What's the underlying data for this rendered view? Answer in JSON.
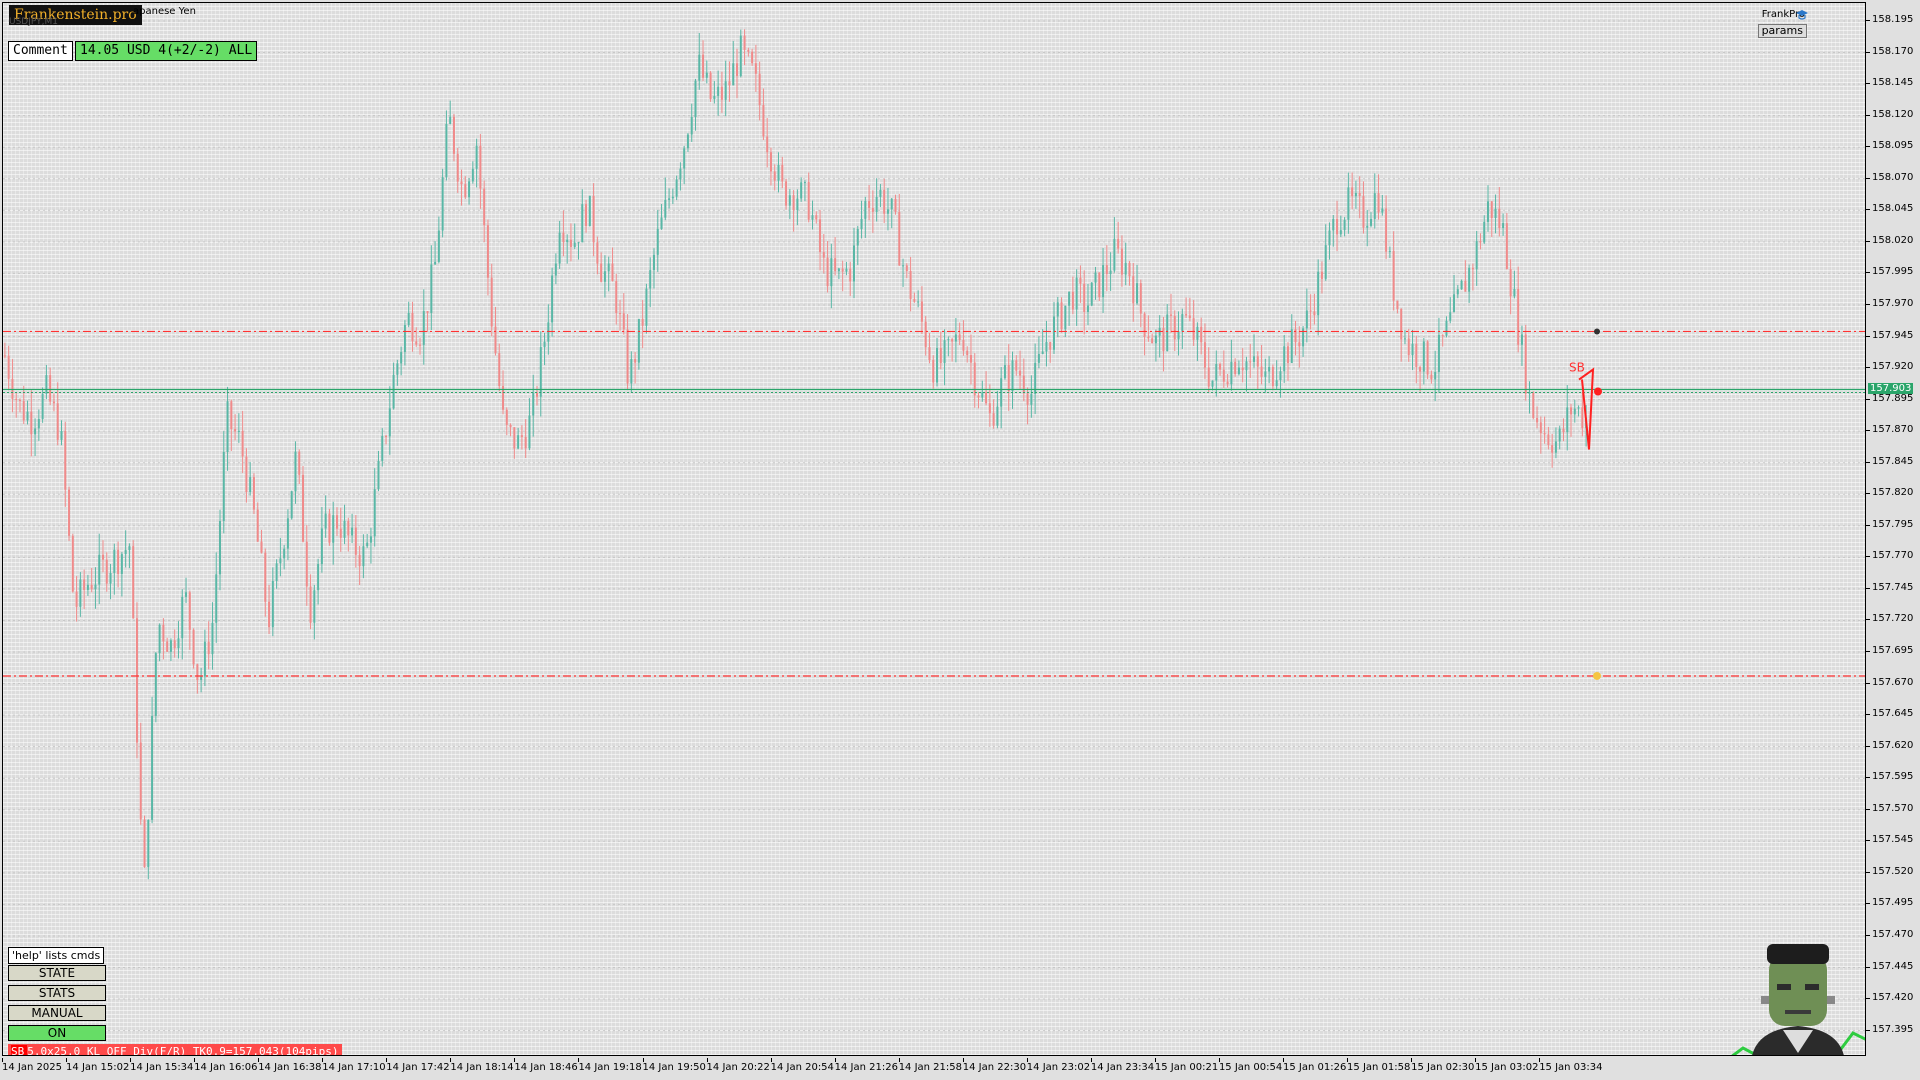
{
  "brand": "Frankenstein.pro",
  "symbol_title": "apanese Yen",
  "symbol_subtitle": "USDJPY,M1",
  "comment_label": "Comment",
  "pnl_text": "14.05 USD 4(+2/-2) ALL",
  "frankpro_label": "FrankPro",
  "params_label": "params",
  "help_label": "'help' lists cmds",
  "buttons": [
    {
      "label": "STATE",
      "active": false
    },
    {
      "label": "STATS",
      "active": false
    },
    {
      "label": "MANUAL",
      "active": false
    },
    {
      "label": "ON",
      "active": true
    }
  ],
  "status_bar": {
    "sb": "SB",
    "text": "5.0x25.0 KL_OFF Div(F/R) TK0.9=157.043(104pips)"
  },
  "colors": {
    "bull": "#59b7a6",
    "bear": "#f08a8a",
    "level": "#ff3333",
    "bid_line": "#2aa56a",
    "pnl_bg": "#66dd66"
  },
  "chart_data": {
    "type": "candlestick",
    "symbol": "USDJPY",
    "timeframe": "M1",
    "current_price": "157.903",
    "price_axis": [
      "158.195",
      "158.170",
      "158.145",
      "158.120",
      "158.095",
      "158.070",
      "158.045",
      "158.020",
      "157.995",
      "157.970",
      "157.945",
      "157.920",
      "157.895",
      "157.870",
      "157.845",
      "157.820",
      "157.795",
      "157.770",
      "157.745",
      "157.720",
      "157.695",
      "157.670",
      "157.645",
      "157.620",
      "157.595",
      "157.570",
      "157.545",
      "157.520",
      "157.495",
      "157.470",
      "157.445",
      "157.420",
      "157.395"
    ],
    "ylim": [
      157.385,
      158.205
    ],
    "time_axis": [
      "14 Jan 2025",
      "14 Jan 15:02",
      "14 Jan 15:34",
      "14 Jan 16:06",
      "14 Jan 16:38",
      "14 Jan 17:10",
      "14 Jan 17:42",
      "14 Jan 18:14",
      "14 Jan 18:46",
      "14 Jan 19:18",
      "14 Jan 19:50",
      "14 Jan 20:22",
      "14 Jan 20:54",
      "14 Jan 21:26",
      "14 Jan 21:58",
      "14 Jan 22:30",
      "14 Jan 23:02",
      "14 Jan 23:34",
      "15 Jan 00:21",
      "15 Jan 00:54",
      "15 Jan 01:26",
      "15 Jan 01:58",
      "15 Jan 02:30",
      "15 Jan 03:02",
      "15 Jan 03:34"
    ],
    "levels": [
      {
        "name": "stop-level",
        "price": 157.949
      },
      {
        "name": "target-level",
        "price": 157.676
      }
    ],
    "price_path": [
      157.93,
      157.89,
      157.88,
      157.9,
      157.87,
      157.73,
      157.75,
      157.76,
      157.77,
      157.78,
      157.5,
      157.72,
      157.7,
      157.74,
      157.67,
      157.72,
      157.88,
      157.86,
      157.8,
      157.72,
      157.78,
      157.85,
      157.73,
      157.79,
      157.8,
      157.78,
      157.77,
      157.84,
      157.91,
      157.96,
      157.95,
      158.0,
      158.12,
      158.06,
      158.1,
      157.97,
      157.87,
      157.86,
      157.88,
      157.95,
      158.04,
      158.02,
      158.05,
      158.0,
      157.98,
      157.91,
      157.96,
      158.02,
      158.06,
      158.1,
      158.16,
      158.13,
      158.14,
      158.17,
      158.15,
      158.1,
      158.06,
      158.06,
      158.05,
      158.0,
      157.99,
      158.0,
      158.05,
      158.06,
      158.04,
      157.99,
      157.96,
      157.92,
      157.93,
      157.95,
      157.91,
      157.88,
      157.91,
      157.92,
      157.9,
      157.94,
      157.96,
      157.98,
      157.97,
      157.99,
      158.01,
      158.0,
      157.96,
      157.94,
      157.95,
      157.96,
      157.94,
      157.91,
      157.92,
      157.93,
      157.92,
      157.91,
      157.93,
      157.94,
      157.96,
      158.0,
      158.04,
      158.05,
      158.04,
      158.06,
      157.99,
      157.94,
      157.93,
      157.92,
      157.95,
      157.98,
      158.01,
      158.05,
      158.03,
      157.96,
      157.89,
      157.87,
      157.86,
      157.89,
      157.88
    ]
  }
}
